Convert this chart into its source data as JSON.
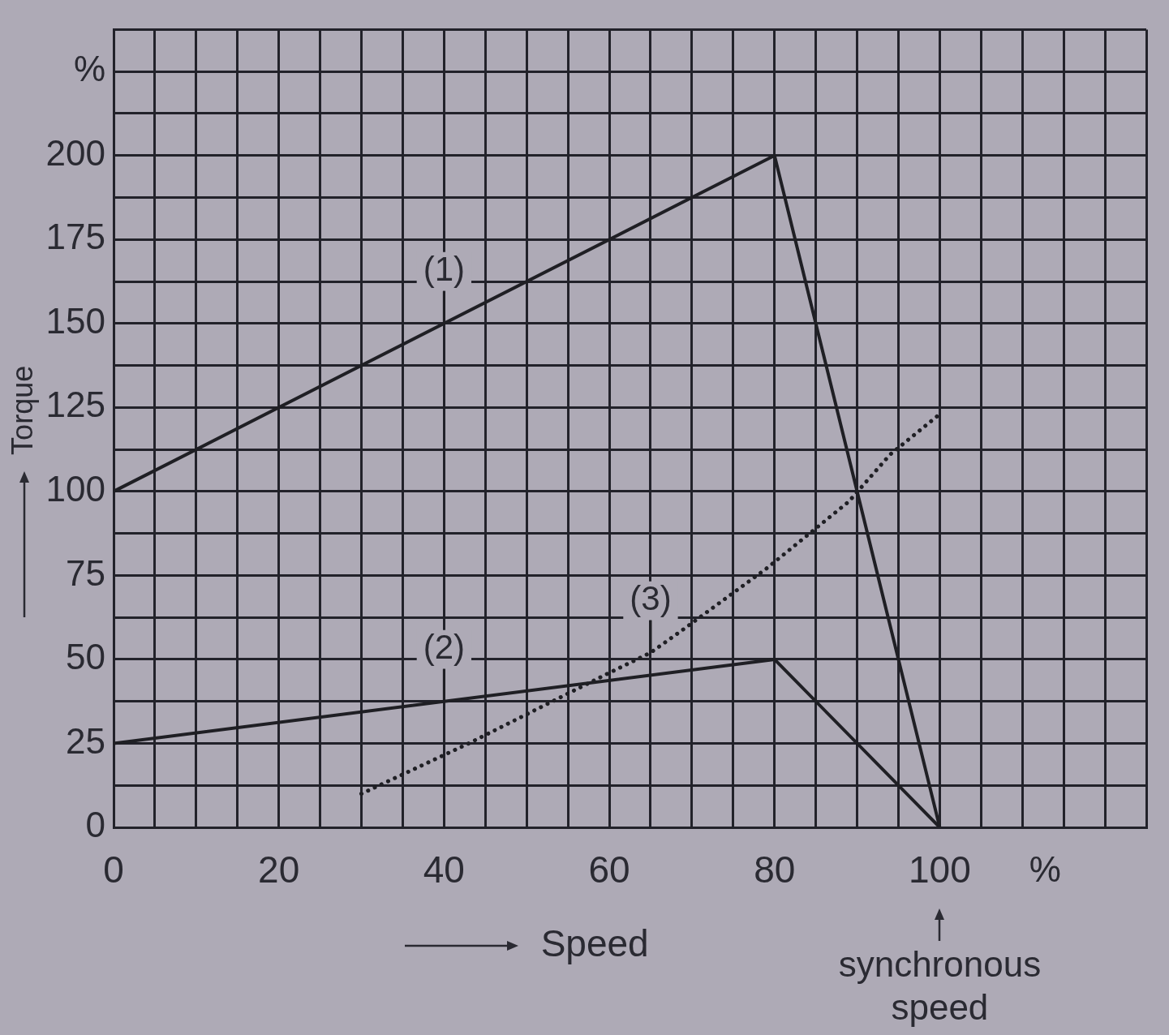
{
  "chart_data": {
    "type": "line",
    "xlabel": "Speed",
    "ylabel": "Torque",
    "annotations": [
      "%",
      "synchronous speed"
    ],
    "series": [
      {
        "name": "(1)",
        "color": "#1f1f24",
        "x": [
          0,
          80,
          100
        ],
        "values": [
          100,
          200,
          0
        ]
      },
      {
        "name": "(2)",
        "color": "#1f1f24",
        "x": [
          0,
          80,
          100
        ],
        "values": [
          25,
          50,
          0
        ]
      },
      {
        "name": "(3)",
        "color": "#1f1f24",
        "line_style": "dotted",
        "x": [
          30,
          43,
          60,
          65,
          69,
          74,
          79,
          85,
          89,
          94,
          100
        ],
        "values": [
          10,
          25,
          46,
          52,
          59,
          68,
          77,
          89,
          97,
          111,
          123
        ]
      }
    ],
    "xlim": [
      0,
      125
    ],
    "ylim": [
      0,
      237.5
    ],
    "xticks": [
      0,
      {
        "value": 5,
        "label": null
      },
      {
        "value": 10,
        "label": null
      },
      {
        "value": 15,
        "label": null
      },
      20,
      {
        "value": 25,
        "label": null
      },
      {
        "value": 30,
        "label": null
      },
      {
        "value": 35,
        "label": null
      },
      40,
      {
        "value": 45,
        "label": null
      },
      {
        "value": 50,
        "label": null
      },
      {
        "value": 55,
        "label": null
      },
      60,
      {
        "value": 65,
        "label": null
      },
      {
        "value": 70,
        "label": null
      },
      {
        "value": 75,
        "label": null
      },
      80,
      {
        "value": 85,
        "label": null
      },
      {
        "value": 90,
        "label": null
      },
      {
        "value": 95,
        "label": null
      },
      100,
      {
        "value": 105,
        "label": null
      },
      {
        "value": 110,
        "label": null
      },
      {
        "value": 115,
        "label": null
      },
      {
        "value": 120,
        "label": null
      },
      {
        "value": 125,
        "label": null
      }
    ],
    "yticks": [
      0,
      {
        "value": 12.5,
        "label": null
      },
      25,
      {
        "value": 37.5,
        "label": null
      },
      50,
      {
        "value": 62.5,
        "label": null
      },
      75,
      {
        "value": 87.5,
        "label": null
      },
      100,
      {
        "value": 112.5,
        "label": null
      },
      125,
      {
        "value": 137.5,
        "label": null
      },
      150,
      {
        "value": 162.5,
        "label": null
      },
      175,
      {
        "value": 187.5,
        "label": null
      },
      200,
      {
        "value": 212.5,
        "label": null
      },
      {
        "value": 225,
        "label": "%"
      },
      {
        "value": 237.5,
        "label": null
      }
    ],
    "grid": true
  }
}
